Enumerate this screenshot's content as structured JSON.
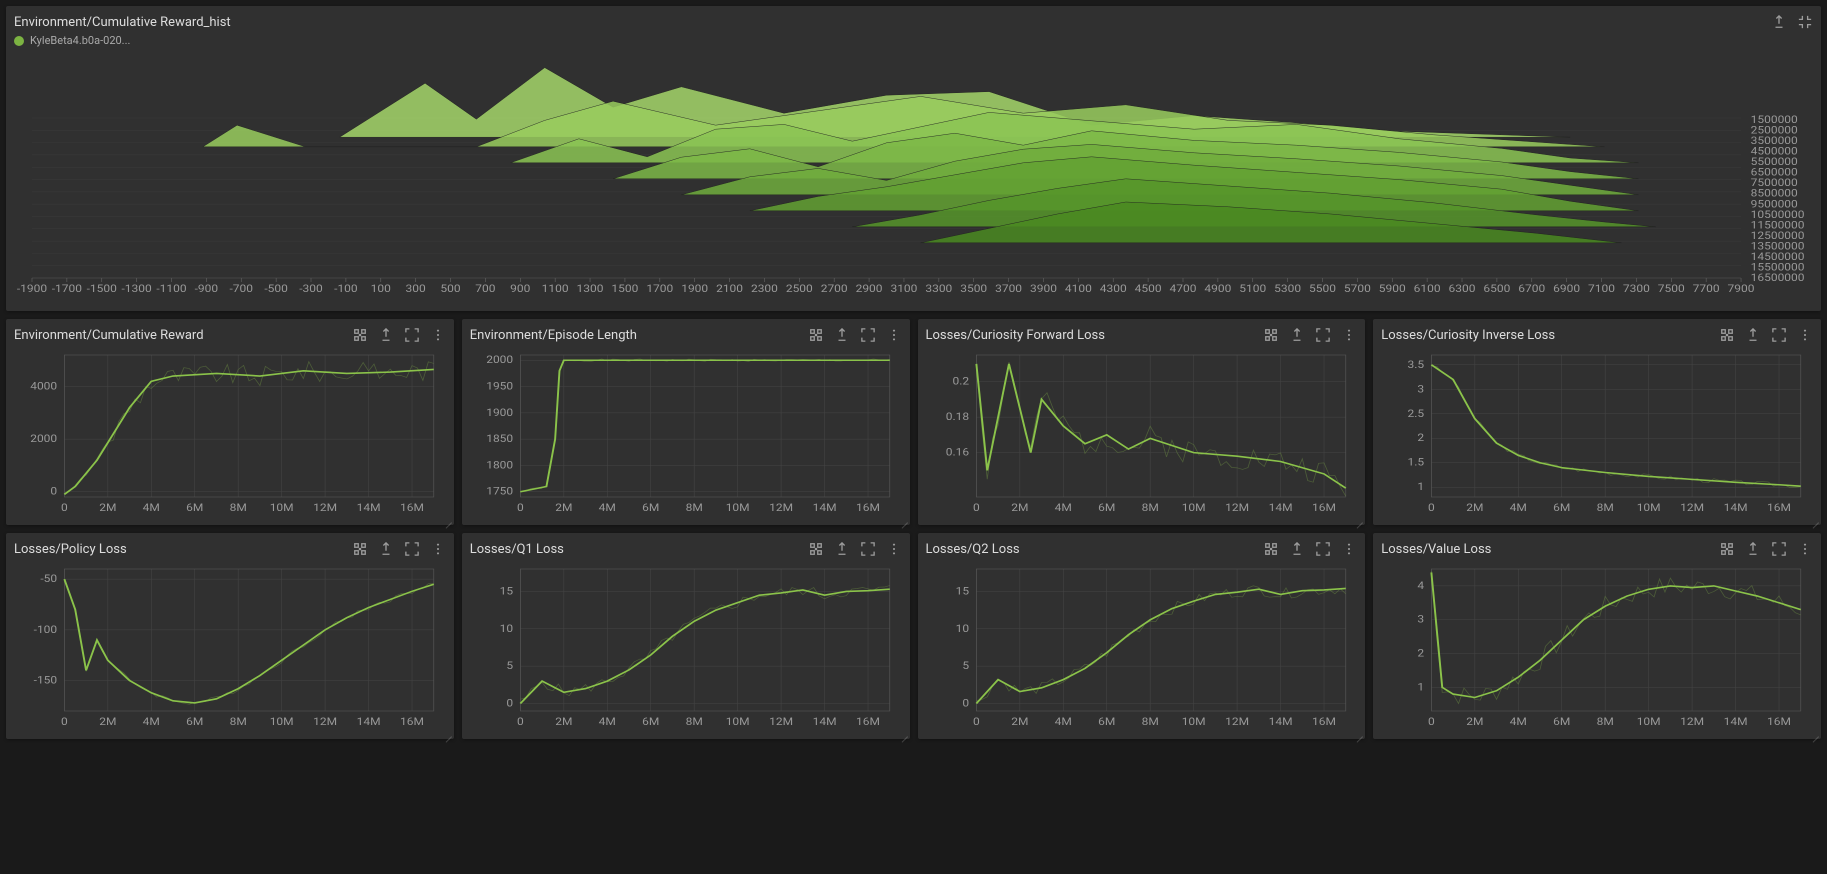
{
  "colors": {
    "panel_bg": "#303030",
    "page_bg": "#1a1a1a",
    "text": "#cccccc",
    "grid": "#444444",
    "line_main": "#8bc34a",
    "line_raw": "#6a8a42",
    "run_dot": "#7cb342",
    "axis_label": "#999999"
  },
  "hist": {
    "title": "Environment/Cumulative Reward_hist",
    "run_label": "KyleBeta4.b0a-020...",
    "xaxis": {
      "min": -1900,
      "max": 7900,
      "step": 200
    },
    "ridge_labels": [
      "1500000",
      "2500000",
      "3500000",
      "4500000",
      "5500000",
      "6500000",
      "7500000",
      "8500000",
      "9500000",
      "10500000",
      "11500000",
      "12500000",
      "13500000",
      "14500000",
      "15500000",
      "16500000"
    ],
    "ridges": [
      {
        "color": "#a5d66a",
        "baseline": 0.12,
        "pts": [
          [
            0.18,
            0
          ],
          [
            0.23,
            0.45
          ],
          [
            0.26,
            0.15
          ],
          [
            0.3,
            0.58
          ],
          [
            0.34,
            0.25
          ],
          [
            0.38,
            0.42
          ],
          [
            0.44,
            0.2
          ],
          [
            0.5,
            0.35
          ],
          [
            0.56,
            0.38
          ],
          [
            0.62,
            0.1
          ],
          [
            0.68,
            0.18
          ],
          [
            0.74,
            0.12
          ],
          [
            0.8,
            0.05
          ],
          [
            0.86,
            0.02
          ],
          [
            0.9,
            0.0
          ]
        ]
      },
      {
        "color": "#99cc5e",
        "baseline": 0.18,
        "pts": [
          [
            0.1,
            0
          ],
          [
            0.12,
            0.18
          ],
          [
            0.16,
            0
          ],
          [
            0.26,
            0
          ],
          [
            0.3,
            0.22
          ],
          [
            0.34,
            0.38
          ],
          [
            0.4,
            0.18
          ],
          [
            0.46,
            0.3
          ],
          [
            0.52,
            0.42
          ],
          [
            0.58,
            0.28
          ],
          [
            0.64,
            0.35
          ],
          [
            0.7,
            0.22
          ],
          [
            0.76,
            0.18
          ],
          [
            0.82,
            0.1
          ],
          [
            0.88,
            0.04
          ],
          [
            0.92,
            0
          ]
        ]
      },
      {
        "color": "#8bc454",
        "baseline": 0.28,
        "pts": [
          [
            0.28,
            0
          ],
          [
            0.32,
            0.2
          ],
          [
            0.36,
            0.05
          ],
          [
            0.4,
            0.28
          ],
          [
            0.44,
            0.32
          ],
          [
            0.48,
            0.18
          ],
          [
            0.52,
            0.3
          ],
          [
            0.56,
            0.42
          ],
          [
            0.62,
            0.35
          ],
          [
            0.68,
            0.28
          ],
          [
            0.74,
            0.32
          ],
          [
            0.8,
            0.2
          ],
          [
            0.86,
            0.12
          ],
          [
            0.9,
            0.04
          ],
          [
            0.94,
            0
          ]
        ]
      },
      {
        "color": "#7db948",
        "baseline": 0.38,
        "pts": [
          [
            0.34,
            0
          ],
          [
            0.38,
            0.18
          ],
          [
            0.42,
            0.25
          ],
          [
            0.46,
            0.1
          ],
          [
            0.5,
            0.3
          ],
          [
            0.54,
            0.38
          ],
          [
            0.58,
            0.28
          ],
          [
            0.62,
            0.4
          ],
          [
            0.68,
            0.32
          ],
          [
            0.74,
            0.28
          ],
          [
            0.8,
            0.22
          ],
          [
            0.86,
            0.14
          ],
          [
            0.9,
            0.06
          ],
          [
            0.94,
            0
          ]
        ]
      },
      {
        "color": "#70ad3d",
        "baseline": 0.48,
        "pts": [
          [
            0.38,
            0
          ],
          [
            0.42,
            0.15
          ],
          [
            0.46,
            0.22
          ],
          [
            0.5,
            0.12
          ],
          [
            0.54,
            0.28
          ],
          [
            0.58,
            0.38
          ],
          [
            0.62,
            0.42
          ],
          [
            0.68,
            0.35
          ],
          [
            0.74,
            0.3
          ],
          [
            0.8,
            0.24
          ],
          [
            0.86,
            0.16
          ],
          [
            0.9,
            0.08
          ],
          [
            0.94,
            0
          ]
        ]
      },
      {
        "color": "#63a133",
        "baseline": 0.58,
        "pts": [
          [
            0.42,
            0
          ],
          [
            0.46,
            0.12
          ],
          [
            0.5,
            0.2
          ],
          [
            0.54,
            0.3
          ],
          [
            0.58,
            0.4
          ],
          [
            0.62,
            0.45
          ],
          [
            0.68,
            0.38
          ],
          [
            0.74,
            0.32
          ],
          [
            0.8,
            0.26
          ],
          [
            0.86,
            0.18
          ],
          [
            0.9,
            0.08
          ],
          [
            0.94,
            0
          ]
        ]
      },
      {
        "color": "#56952a",
        "baseline": 0.68,
        "pts": [
          [
            0.48,
            0
          ],
          [
            0.52,
            0.1
          ],
          [
            0.56,
            0.22
          ],
          [
            0.6,
            0.32
          ],
          [
            0.64,
            0.4
          ],
          [
            0.7,
            0.34
          ],
          [
            0.76,
            0.28
          ],
          [
            0.82,
            0.2
          ],
          [
            0.88,
            0.1
          ],
          [
            0.92,
            0.04
          ],
          [
            0.95,
            0
          ]
        ]
      },
      {
        "color": "#4a8921",
        "baseline": 0.78,
        "pts": [
          [
            0.52,
            0
          ],
          [
            0.56,
            0.12
          ],
          [
            0.6,
            0.24
          ],
          [
            0.64,
            0.34
          ],
          [
            0.7,
            0.3
          ],
          [
            0.76,
            0.24
          ],
          [
            0.82,
            0.16
          ],
          [
            0.88,
            0.08
          ],
          [
            0.93,
            0
          ]
        ]
      }
    ]
  },
  "charts": [
    {
      "title": "Environment/Cumulative Reward",
      "x": {
        "min": 0,
        "max": 17000000,
        "ticks": [
          0,
          2,
          4,
          6,
          8,
          10,
          12,
          14,
          16
        ],
        "suffix": "M"
      },
      "y": {
        "ticks": [
          0,
          2000,
          4000
        ]
      },
      "ylim": [
        -200,
        5200
      ],
      "series": [
        [
          0,
          -100
        ],
        [
          0.5,
          200
        ],
        [
          1.5,
          1200
        ],
        [
          3,
          3200
        ],
        [
          4,
          4200
        ],
        [
          5,
          4400
        ],
        [
          7,
          4500
        ],
        [
          9,
          4400
        ],
        [
          11,
          4600
        ],
        [
          13,
          4500
        ],
        [
          15,
          4550
        ],
        [
          17,
          4650
        ]
      ],
      "noise": 800,
      "noise_start": 2
    },
    {
      "title": "Environment/Episode Length",
      "x": {
        "min": 0,
        "max": 17000000,
        "ticks": [
          0,
          2,
          4,
          6,
          8,
          10,
          12,
          14,
          16
        ],
        "suffix": "M"
      },
      "y": {
        "ticks": [
          1750,
          1800,
          1850,
          1900,
          1950,
          2000
        ]
      },
      "ylim": [
        1740,
        2010
      ],
      "series": [
        [
          0,
          1750
        ],
        [
          1.2,
          1760
        ],
        [
          1.6,
          1850
        ],
        [
          1.8,
          1980
        ],
        [
          2.0,
          2000
        ],
        [
          3,
          2000
        ],
        [
          17,
          2000
        ]
      ],
      "noise": 5
    },
    {
      "title": "Losses/Curiosity Forward Loss",
      "x": {
        "min": 0,
        "max": 17000000,
        "ticks": [
          0,
          2,
          4,
          6,
          8,
          10,
          12,
          14,
          16
        ],
        "suffix": "M"
      },
      "y": {
        "ticks": [
          0.16,
          0.18,
          0.2
        ]
      },
      "ylim": [
        0.135,
        0.215
      ],
      "series": [
        [
          0,
          0.21
        ],
        [
          0.5,
          0.15
        ],
        [
          1.5,
          0.21
        ],
        [
          2.5,
          0.16
        ],
        [
          3,
          0.19
        ],
        [
          4,
          0.175
        ],
        [
          5,
          0.165
        ],
        [
          6,
          0.17
        ],
        [
          7,
          0.162
        ],
        [
          8,
          0.168
        ],
        [
          10,
          0.16
        ],
        [
          12,
          0.158
        ],
        [
          14,
          0.155
        ],
        [
          16,
          0.148
        ],
        [
          17,
          0.14
        ]
      ],
      "noise": 0.015
    },
    {
      "title": "Losses/Curiosity Inverse Loss",
      "x": {
        "min": 0,
        "max": 17000000,
        "ticks": [
          0,
          2,
          4,
          6,
          8,
          10,
          12,
          14,
          16
        ],
        "suffix": "M"
      },
      "y": {
        "ticks": [
          1,
          1.5,
          2,
          2.5,
          3,
          3.5
        ]
      },
      "ylim": [
        0.8,
        3.7
      ],
      "series": [
        [
          0,
          3.5
        ],
        [
          1,
          3.2
        ],
        [
          2,
          2.4
        ],
        [
          3,
          1.9
        ],
        [
          4,
          1.65
        ],
        [
          5,
          1.5
        ],
        [
          6,
          1.4
        ],
        [
          8,
          1.3
        ],
        [
          10,
          1.22
        ],
        [
          12,
          1.16
        ],
        [
          14,
          1.1
        ],
        [
          16,
          1.05
        ],
        [
          17,
          1.02
        ]
      ],
      "noise": 0.1
    },
    {
      "title": "Losses/Policy Loss",
      "x": {
        "min": 0,
        "max": 17000000,
        "ticks": [
          0,
          2,
          4,
          6,
          8,
          10,
          12,
          14,
          16
        ],
        "suffix": "M"
      },
      "y": {
        "ticks": [
          -150,
          -100,
          -50
        ]
      },
      "ylim": [
        -180,
        -40
      ],
      "series": [
        [
          0,
          -50
        ],
        [
          0.5,
          -80
        ],
        [
          1,
          -140
        ],
        [
          1.5,
          -110
        ],
        [
          2,
          -130
        ],
        [
          3,
          -150
        ],
        [
          4,
          -162
        ],
        [
          5,
          -170
        ],
        [
          6,
          -172
        ],
        [
          7,
          -168
        ],
        [
          8,
          -158
        ],
        [
          9,
          -145
        ],
        [
          10,
          -130
        ],
        [
          11,
          -115
        ],
        [
          12,
          -100
        ],
        [
          13,
          -88
        ],
        [
          14,
          -78
        ],
        [
          15,
          -70
        ],
        [
          16,
          -62
        ],
        [
          17,
          -55
        ]
      ],
      "noise": 5
    },
    {
      "title": "Losses/Q1 Loss",
      "x": {
        "min": 0,
        "max": 17000000,
        "ticks": [
          0,
          2,
          4,
          6,
          8,
          10,
          12,
          14,
          16
        ],
        "suffix": "M"
      },
      "y": {
        "ticks": [
          0,
          5,
          10,
          15
        ]
      },
      "ylim": [
        -1,
        18
      ],
      "series": [
        [
          0,
          0
        ],
        [
          1,
          3
        ],
        [
          2,
          1.5
        ],
        [
          3,
          2
        ],
        [
          4,
          3
        ],
        [
          5,
          4.5
        ],
        [
          6,
          6.5
        ],
        [
          7,
          9
        ],
        [
          8,
          11
        ],
        [
          9,
          12.5
        ],
        [
          10,
          13.5
        ],
        [
          11,
          14.5
        ],
        [
          12,
          14.8
        ],
        [
          13,
          15.2
        ],
        [
          14,
          14.5
        ],
        [
          15,
          15
        ],
        [
          16,
          15.1
        ],
        [
          17,
          15.3
        ]
      ],
      "noise": 1.5
    },
    {
      "title": "Losses/Q2 Loss",
      "x": {
        "min": 0,
        "max": 17000000,
        "ticks": [
          0,
          2,
          4,
          6,
          8,
          10,
          12,
          14,
          16
        ],
        "suffix": "M"
      },
      "y": {
        "ticks": [
          0,
          5,
          10,
          15
        ]
      },
      "ylim": [
        -1,
        18
      ],
      "series": [
        [
          0,
          0
        ],
        [
          1,
          3.2
        ],
        [
          2,
          1.6
        ],
        [
          3,
          2.1
        ],
        [
          4,
          3.2
        ],
        [
          5,
          4.7
        ],
        [
          6,
          6.8
        ],
        [
          7,
          9.2
        ],
        [
          8,
          11.2
        ],
        [
          9,
          12.7
        ],
        [
          10,
          13.7
        ],
        [
          11,
          14.6
        ],
        [
          12,
          14.9
        ],
        [
          13,
          15.3
        ],
        [
          14,
          14.6
        ],
        [
          15,
          15.1
        ],
        [
          16,
          15.2
        ],
        [
          17,
          15.4
        ]
      ],
      "noise": 1.5
    },
    {
      "title": "Losses/Value Loss",
      "x": {
        "min": 0,
        "max": 17000000,
        "ticks": [
          0,
          2,
          4,
          6,
          8,
          10,
          12,
          14,
          16
        ],
        "suffix": "M"
      },
      "y": {
        "ticks": [
          1,
          2,
          3,
          4
        ]
      },
      "ylim": [
        0.3,
        4.5
      ],
      "series": [
        [
          0,
          4.4
        ],
        [
          0.5,
          1.0
        ],
        [
          1,
          0.8
        ],
        [
          2,
          0.7
        ],
        [
          3,
          0.9
        ],
        [
          4,
          1.3
        ],
        [
          5,
          1.8
        ],
        [
          6,
          2.4
        ],
        [
          7,
          3.0
        ],
        [
          8,
          3.4
        ],
        [
          9,
          3.7
        ],
        [
          10,
          3.9
        ],
        [
          11,
          4.0
        ],
        [
          12,
          3.95
        ],
        [
          13,
          4.0
        ],
        [
          14,
          3.85
        ],
        [
          15,
          3.7
        ],
        [
          16,
          3.5
        ],
        [
          17,
          3.3
        ]
      ],
      "noise": 0.6
    }
  ]
}
